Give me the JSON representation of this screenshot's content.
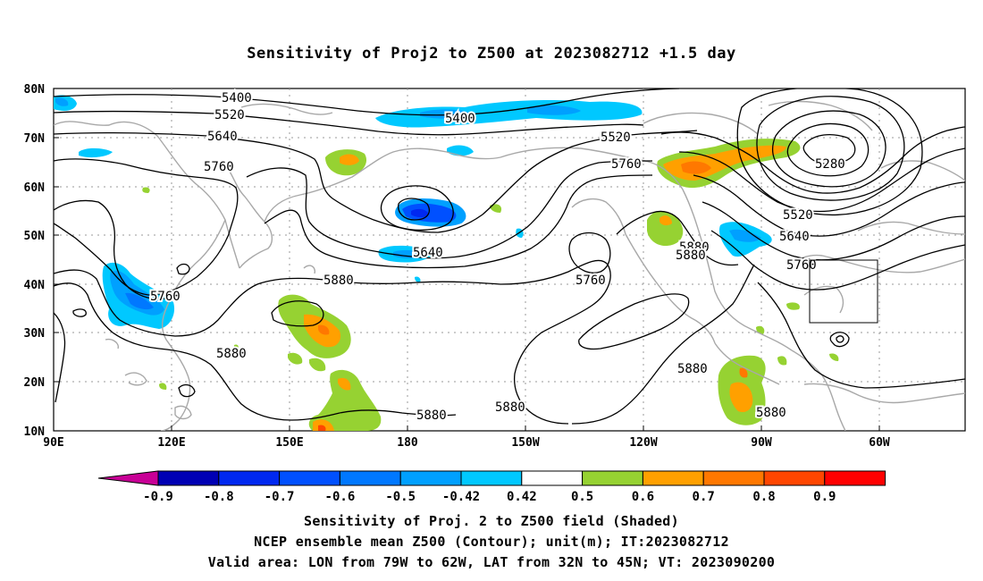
{
  "title": "Sensitivity of Proj2 to Z500 at 2023082712 +1.5 day",
  "lat_ticks": [
    "80N",
    "70N",
    "60N",
    "50N",
    "40N",
    "30N",
    "20N",
    "10N"
  ],
  "lon_ticks": [
    "90E",
    "120E",
    "150E",
    "180",
    "150W",
    "120W",
    "90W",
    "60W"
  ],
  "contour_labels": [
    "5400",
    "5400",
    "5520",
    "5520",
    "5520",
    "5640",
    "5640",
    "5640",
    "5760",
    "5760",
    "5760",
    "5760",
    "5760",
    "5880",
    "5880",
    "5880",
    "5880",
    "5880",
    "5880",
    "5880",
    "5880",
    "5280"
  ],
  "colorbar": {
    "labels": [
      "-0.9",
      "-0.8",
      "-0.7",
      "-0.6",
      "-0.5",
      "-0.42",
      "0.42",
      "0.5",
      "0.6",
      "0.7",
      "0.8",
      "0.9"
    ],
    "colors": [
      "#0000b4",
      "#0028f0",
      "#0050ff",
      "#0078ff",
      "#00a0ff",
      "#00c8ff",
      "#ffffff",
      "#96d232",
      "#ffa000",
      "#ff7800",
      "#ff4600",
      "#ff0000"
    ],
    "low_end_color": "#c80096",
    "high_end_color": "#ffa0c8"
  },
  "captions": {
    "line1": "Sensitivity of Proj. 2 to Z500 field (Shaded)",
    "line2": "NCEP ensemble mean Z500 (Contour); unit(m); IT:2023082712",
    "line3": "Valid area: LON from 79W to 62W, LAT from 32N to 45N; VT: 2023090200"
  }
}
